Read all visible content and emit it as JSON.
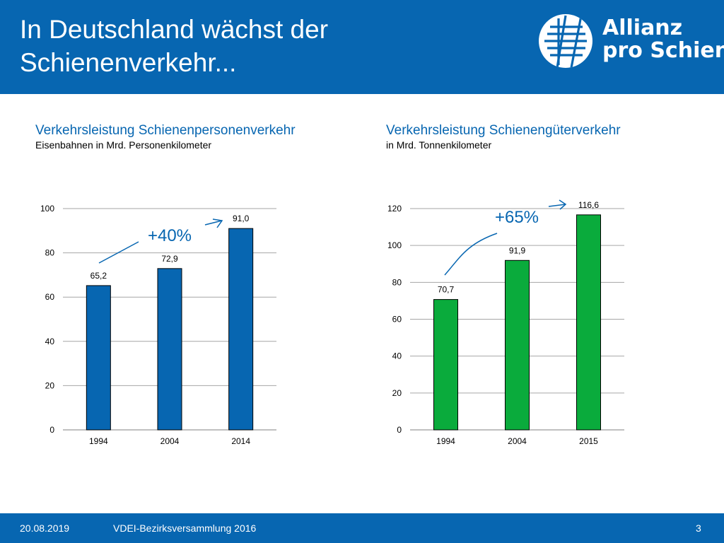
{
  "slide": {
    "title_line1": "In Deutschland wächst der",
    "title_line2": "Schienenverkehr...",
    "brand_color": "#0766b1",
    "logo": {
      "line1": "Allianz",
      "line2": "pro Schiene",
      "icon": "rail-tracks-logo-icon"
    }
  },
  "footer": {
    "date": "20.08.2019",
    "event": "VDEI-Bezirksversammlung 2016",
    "page": "3"
  },
  "chart_data": [
    {
      "type": "bar",
      "title": "Verkehrsleistung Schienenpersonenverkehr",
      "subtitle": "Eisenbahnen in Mrd. Personenkilometer",
      "categories": [
        "1994",
        "2004",
        "2014"
      ],
      "values": [
        65.2,
        72.9,
        91.0
      ],
      "data_labels": [
        "65,2",
        "72,9",
        "91,0"
      ],
      "ylim": [
        0,
        100
      ],
      "yticks": [
        0,
        20,
        40,
        60,
        80,
        100
      ],
      "grid": true,
      "bar_color": "#0766b1",
      "annotation": "+40%"
    },
    {
      "type": "bar",
      "title": "Verkehrsleistung Schienengüterverkehr",
      "subtitle": "in Mrd. Tonnenkilometer",
      "categories": [
        "1994",
        "2004",
        "2015"
      ],
      "values": [
        70.7,
        91.9,
        116.6
      ],
      "data_labels": [
        "70,7",
        "91,9",
        "116,6"
      ],
      "ylim": [
        0,
        120
      ],
      "yticks": [
        0,
        20,
        40,
        60,
        80,
        100,
        120
      ],
      "grid": true,
      "bar_color": "#0aab3c",
      "annotation": "+65%"
    }
  ]
}
